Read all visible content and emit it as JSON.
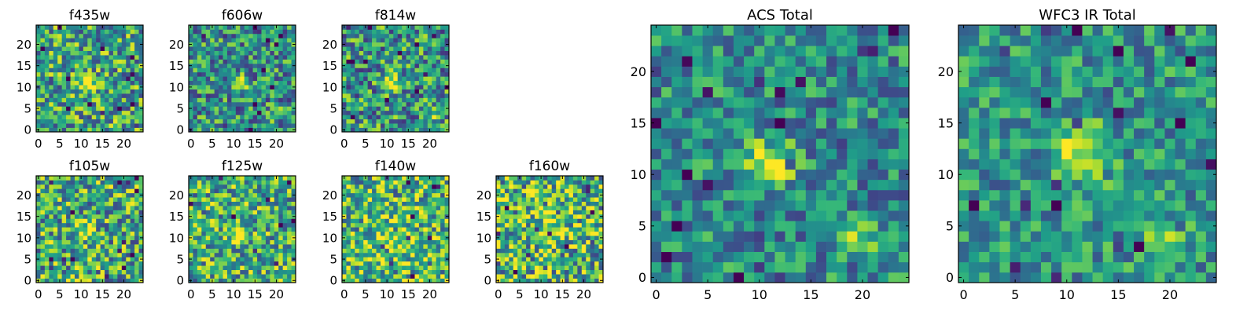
{
  "chart_data": [
    {
      "type": "heatmap",
      "title": "f435w",
      "xticks": [
        "0",
        "5",
        "10",
        "15",
        "20"
      ],
      "yticks": [
        "0",
        "5",
        "10",
        "15",
        "20"
      ],
      "xlim": [
        0,
        25
      ],
      "ylim": [
        0,
        25
      ],
      "grid": false,
      "colormap": "viridis",
      "features": [
        "central source near x=11, y=11"
      ]
    },
    {
      "type": "heatmap",
      "title": "f606w",
      "xticks": [
        "0",
        "5",
        "10",
        "15",
        "20"
      ],
      "yticks": [
        "0",
        "5",
        "10",
        "15",
        "20"
      ],
      "xlim": [
        0,
        25
      ],
      "ylim": [
        0,
        25
      ],
      "grid": false,
      "colormap": "viridis",
      "features": [
        "central source near x=11, y=11",
        "faint source near x=20, y=3"
      ]
    },
    {
      "type": "heatmap",
      "title": "f814w",
      "xticks": [
        "0",
        "5",
        "10",
        "15",
        "20"
      ],
      "yticks": [
        "0",
        "5",
        "10",
        "15",
        "20"
      ],
      "xlim": [
        0,
        25
      ],
      "ylim": [
        0,
        25
      ],
      "grid": false,
      "colormap": "viridis",
      "features": [
        "central source near x=11, y=11",
        "faint source near x=20, y=3"
      ]
    },
    {
      "type": "heatmap",
      "title": "f105w",
      "xticks": [
        "0",
        "5",
        "10",
        "15",
        "20"
      ],
      "yticks": [
        "0",
        "5",
        "10",
        "15",
        "20"
      ],
      "xlim": [
        0,
        25
      ],
      "ylim": [
        0,
        25
      ],
      "grid": false,
      "colormap": "viridis",
      "features": [
        "central source near x=11, y=11"
      ]
    },
    {
      "type": "heatmap",
      "title": "f125w",
      "xticks": [
        "0",
        "5",
        "10",
        "15",
        "20"
      ],
      "yticks": [
        "0",
        "5",
        "10",
        "15",
        "20"
      ],
      "xlim": [
        0,
        25
      ],
      "ylim": [
        0,
        25
      ],
      "grid": false,
      "colormap": "viridis",
      "features": [
        "central source near x=11, y=11"
      ]
    },
    {
      "type": "heatmap",
      "title": "f140w",
      "xticks": [
        "0",
        "5",
        "10",
        "15",
        "20"
      ],
      "yticks": [
        "0",
        "5",
        "10",
        "15",
        "20"
      ],
      "xlim": [
        0,
        25
      ],
      "ylim": [
        0,
        25
      ],
      "grid": false,
      "colormap": "viridis",
      "features": [
        "diffuse emission near center"
      ]
    },
    {
      "type": "heatmap",
      "title": "f160w",
      "xticks": [
        "0",
        "5",
        "10",
        "15",
        "20"
      ],
      "yticks": [
        "0",
        "5",
        "10",
        "15",
        "20"
      ],
      "xlim": [
        0,
        25
      ],
      "ylim": [
        0,
        25
      ],
      "grid": false,
      "colormap": "viridis",
      "features": [
        "diffuse emission near center"
      ]
    },
    {
      "type": "heatmap",
      "title": "ACS Total",
      "xticks": [
        "0",
        "5",
        "10",
        "15",
        "20"
      ],
      "yticks": [
        "0",
        "5",
        "10",
        "15",
        "20"
      ],
      "xlim": [
        0,
        25
      ],
      "ylim": [
        0,
        25
      ],
      "grid": false,
      "colormap": "viridis",
      "features": [
        "bright source near x=11, y=11",
        "secondary source near x=20, y=4"
      ]
    },
    {
      "type": "heatmap",
      "title": "WFC3 IR Total",
      "xticks": [
        "0",
        "5",
        "10",
        "15",
        "20"
      ],
      "yticks": [
        "0",
        "5",
        "10",
        "15",
        "20"
      ],
      "xlim": [
        0,
        25
      ],
      "ylim": [
        0,
        25
      ],
      "grid": false,
      "colormap": "viridis",
      "features": [
        "bright extended source near x=11, y=12",
        "secondary source near x=19, y=4"
      ]
    }
  ]
}
